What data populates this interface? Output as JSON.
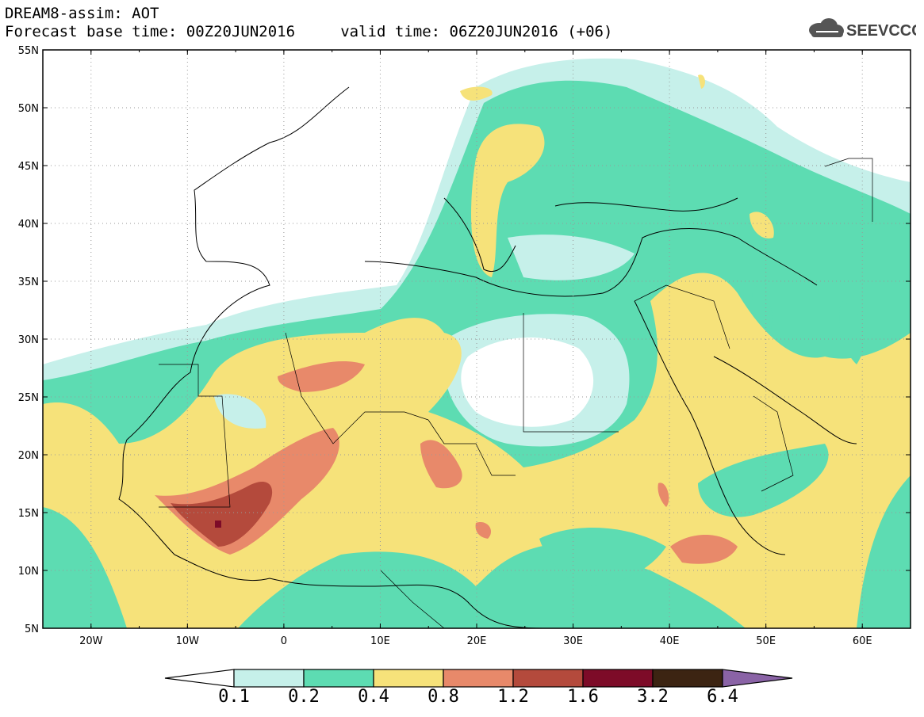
{
  "header": {
    "title_line1": "DREAM8-assim: AOT",
    "title_line2": "Forecast base time: 00Z20JUN2016     valid time: 06Z20JUN2016 (+06)"
  },
  "logo": {
    "text": "SEEVCCC",
    "icon": "cloud-icon"
  },
  "map": {
    "lat_labels": [
      "55N",
      "50N",
      "45N",
      "40N",
      "35N",
      "30N",
      "25N",
      "20N",
      "15N",
      "10N",
      "5N"
    ],
    "lon_labels": [
      "20W",
      "10W",
      "0",
      "10E",
      "20E",
      "30E",
      "40E",
      "50E",
      "60E"
    ],
    "lat_range": [
      5,
      55
    ],
    "lon_range": [
      -25,
      65
    ],
    "grid": "dotted"
  },
  "colorbar": {
    "levels": [
      "0.1",
      "0.2",
      "0.4",
      "0.8",
      "1.2",
      "1.6",
      "3.2",
      "6.4"
    ],
    "colors": [
      "#ffffff",
      "#c6f0ea",
      "#5ddcb2",
      "#f6e27a",
      "#e8896a",
      "#b44a3c",
      "#7d0b28",
      "#3c2412",
      "#8a63a6"
    ]
  }
}
